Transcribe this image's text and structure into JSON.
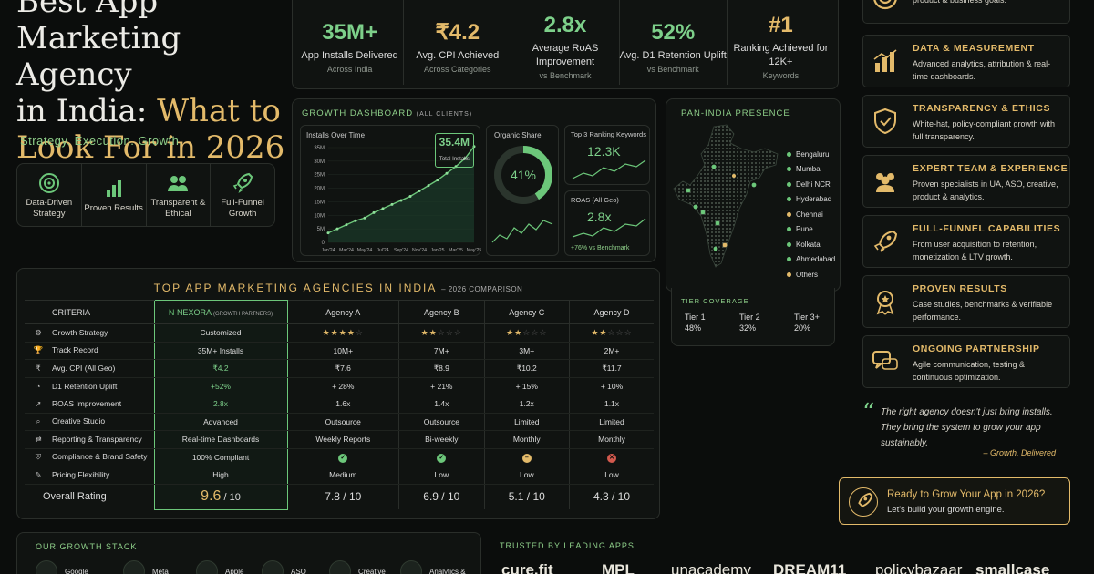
{
  "hero": {
    "title_lines": [
      "Best App",
      "Marketing Agency",
      "in India:"
    ],
    "title_gold": [
      "What to",
      "Look For in 2026"
    ],
    "tagline": "Strategy. Execution. Growth.",
    "pillars": [
      {
        "icon": "target-icon",
        "label": "Data-Driven Strategy"
      },
      {
        "icon": "bar-chart-icon",
        "label": "Proven Results"
      },
      {
        "icon": "users-icon",
        "label": "Transparent & Ethical"
      },
      {
        "icon": "rocket-icon",
        "label": "Full-Funnel Growth"
      }
    ]
  },
  "kpis": [
    {
      "value": "35M+",
      "label": "App Installs Delivered",
      "sub": "Across India"
    },
    {
      "value": "₹4.2",
      "label": "Avg. CPI Achieved",
      "sub": "Across Categories"
    },
    {
      "value": "2.8x",
      "label": "Average RoAS Improvement",
      "sub": "vs Benchmark"
    },
    {
      "value": "52%",
      "label": "Avg. D1 Retention Uplift",
      "sub": "vs Benchmark"
    },
    {
      "value": "#1",
      "label": "Ranking Achieved for 12K+",
      "sub": "Keywords"
    }
  ],
  "dashboard": {
    "title": "GROWTH DASHBOARD",
    "title_note": "(ALL CLIENTS)",
    "installs_title": "Installs Over Time",
    "callout_value": "35.4M",
    "callout_label": "Total Installs",
    "organic_title": "Organic Share",
    "organic_value": "41%",
    "organic_fraction": 0.41,
    "keywords_title": "Top 3 Ranking Keywords",
    "keywords_value": "12.3K",
    "roas_title": "ROAS (All Geo)",
    "roas_value": "2.8x",
    "roas_sub": "+76% vs Benchmark"
  },
  "chart_data": {
    "type": "line",
    "title": "Installs Over Time",
    "x": [
      "Jan'24",
      "Feb'24",
      "Mar'24",
      "Apr'24",
      "May'24",
      "Jun'24",
      "Jul'24",
      "Aug'24",
      "Sep'24",
      "Oct'24",
      "Nov'24",
      "Dec'24",
      "Jan'25",
      "Feb'25",
      "Mar'25",
      "Apr'25",
      "May'25"
    ],
    "x_tick_labels": [
      "Jan'24",
      "Mar'24",
      "May'24",
      "Jul'24",
      "Sep'24",
      "Nov'24",
      "Jan'25",
      "Mar'25",
      "May'25"
    ],
    "y_tick_labels": [
      "0",
      "5M",
      "10M",
      "15M",
      "20M",
      "25M",
      "30M",
      "35M"
    ],
    "values": [
      3.5,
      5,
      6.5,
      8,
      9,
      11,
      12.5,
      14,
      15.5,
      17,
      19,
      21,
      23,
      25.5,
      28,
      31,
      35.4
    ],
    "ylim": [
      0,
      35
    ],
    "grid": true
  },
  "presence": {
    "title": "PAN-INDIA PRESENCE",
    "cities": [
      {
        "name": "Bengaluru",
        "color": "#6cc77a"
      },
      {
        "name": "Mumbai",
        "color": "#6cc77a"
      },
      {
        "name": "Delhi NCR",
        "color": "#6cc77a"
      },
      {
        "name": "Hyderabad",
        "color": "#6cc77a"
      },
      {
        "name": "Chennai",
        "color": "#e3ba6a"
      },
      {
        "name": "Pune",
        "color": "#6cc77a"
      },
      {
        "name": "Kolkata",
        "color": "#6cc77a"
      },
      {
        "name": "Ahmedabad",
        "color": "#6cc77a"
      },
      {
        "name": "Others",
        "color": "#e3ba6a"
      }
    ],
    "tier_title": "TIER COVERAGE",
    "tiers": [
      {
        "label": "Tier 1",
        "value": "48%"
      },
      {
        "label": "Tier 2",
        "value": "32%"
      },
      {
        "label": "Tier 3+",
        "value": "20%"
      }
    ]
  },
  "comparison": {
    "title": "TOP APP MARKETING AGENCIES IN INDIA",
    "subtitle": "– 2026 COMPARISON",
    "criteria_header": "CRITERIA",
    "nexora_name": "NEXORA",
    "nexora_note": "(GROWTH PARTNERS)",
    "agencies": [
      "Agency A",
      "Agency B",
      "Agency C",
      "Agency D"
    ],
    "rows": [
      {
        "icon": "⚙",
        "label": "Growth Strategy",
        "nexora": "Customized",
        "stars": [
          3.5,
          2,
          2,
          2
        ]
      },
      {
        "icon": "🏆",
        "label": "Track Record",
        "nexora": "35M+ Installs",
        "cells": [
          "10M+",
          "7M+",
          "3M+",
          "2M+"
        ]
      },
      {
        "icon": "₹",
        "label": "Avg. CPI (All Geo)",
        "nexora": "₹4.2",
        "cells": [
          "₹7.6",
          "₹8.9",
          "₹10.2",
          "₹11.7"
        ]
      },
      {
        "icon": "◔",
        "label": "D1 Retention Uplift",
        "nexora": "+52%",
        "cells": [
          "+ 28%",
          "+ 21%",
          "+ 15%",
          "+ 10%"
        ]
      },
      {
        "icon": "➚",
        "label": "ROAS Improvement",
        "nexora": "2.8x",
        "cells": [
          "1.6x",
          "1.4x",
          "1.2x",
          "1.1x"
        ]
      },
      {
        "icon": "⌕",
        "label": "Creative Studio",
        "nexora": "Advanced",
        "cells": [
          "Outsource",
          "Outsource",
          "Limited",
          "Limited"
        ]
      },
      {
        "icon": "⇄",
        "label": "Reporting & Transparency",
        "nexora": "Real-time Dashboards",
        "cells": [
          "Weekly Reports",
          "Bi-weekly",
          "Monthly",
          "Monthly"
        ]
      },
      {
        "icon": "⛨",
        "label": "Compliance & Brand Safety",
        "nexora": "100% Compliant",
        "status": [
          "ok",
          "ok",
          "partial",
          "no"
        ]
      },
      {
        "icon": "✎",
        "label": "Pricing Flexibility",
        "nexora": "High",
        "cells": [
          "Medium",
          "Low",
          "Low",
          "Low"
        ]
      }
    ],
    "overall_label": "Overall Rating",
    "overall_nexora": "9.6",
    "overall": [
      "7.8",
      "6.9",
      "5.1",
      "4.3"
    ],
    "overall_suffix": " / 10"
  },
  "features": [
    {
      "icon": "target-icon",
      "title": "",
      "desc": "Customized strategy aligned to your product & business goals."
    },
    {
      "icon": "bar-chart-icon",
      "title": "DATA & MEASUREMENT",
      "desc": "Advanced analytics, attribution & real-time dashboards."
    },
    {
      "icon": "shield-check-icon",
      "title": "TRANSPARENCY & ETHICS",
      "desc": "White-hat, policy-compliant growth with full transparency."
    },
    {
      "icon": "team-icon",
      "title": "EXPERT TEAM & EXPERIENCE",
      "desc": "Proven specialists in UA, ASO, creative, product & analytics."
    },
    {
      "icon": "rocket-icon",
      "title": "FULL-FUNNEL CAPABILITIES",
      "desc": "From user acquisition to retention, monetization & LTV growth."
    },
    {
      "icon": "medal-icon",
      "title": "PROVEN RESULTS",
      "desc": "Case studies, benchmarks & verifiable performance."
    },
    {
      "icon": "chat-icon",
      "title": "ONGOING PARTNERSHIP",
      "desc": "Agile communication, testing & continuous optimization."
    }
  ],
  "quote": {
    "text": "The right agency doesn't just bring installs. They bring the system to grow your app sustainably.",
    "by": "– Growth, Delivered"
  },
  "cta": {
    "title": "Ready to Grow Your App in 2026?",
    "sub": "Let's build your growth engine."
  },
  "stack": {
    "title": "OUR GROWTH STACK",
    "items": [
      "Google",
      "Meta",
      "Apple",
      "ASO",
      "Creative",
      "Analytics &"
    ]
  },
  "trusted": {
    "title": "TRUSTED BY LEADING APPS",
    "logos": [
      "cure.fit",
      "MPL",
      "unacademy",
      "DREAM11",
      "policybazaar",
      "smallcase"
    ]
  }
}
